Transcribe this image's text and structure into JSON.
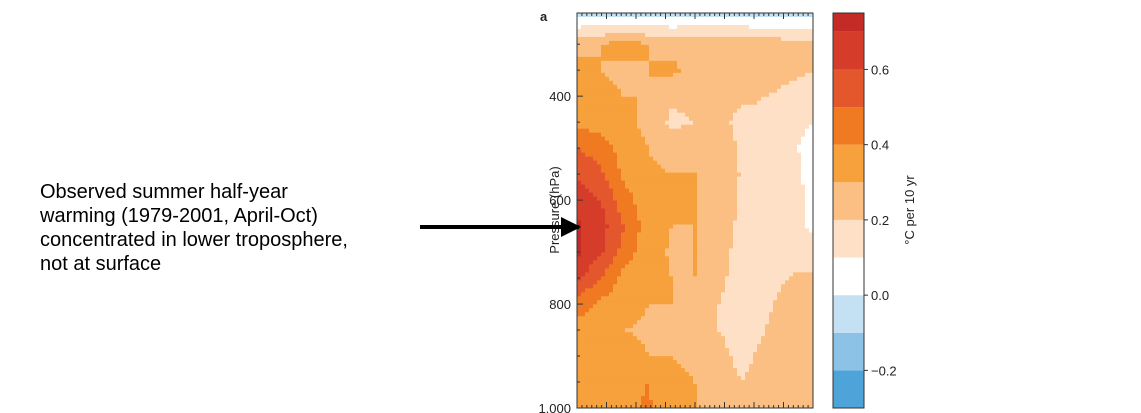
{
  "annotation": {
    "lines": [
      "Observed summer half-year",
      "warming (1979-2001, April-Oct)",
      "concentrated in lower troposphere,",
      "not at surface"
    ]
  },
  "chart_data": {
    "type": "heatmap",
    "panel_label": "a",
    "ylabel": "Pressure (hPa)",
    "yticks": [
      "400",
      "600",
      "800",
      "1,000"
    ],
    "ytick_values": [
      400,
      600,
      800,
      1000
    ],
    "ylim": [
      240,
      1000
    ],
    "y_reversed": true,
    "x_tick_labels": [],
    "grid": false,
    "colorbar": {
      "label": "°C per 10 yr",
      "tick_labels": [
        "0.6",
        "0.4",
        "0.2",
        "0.0",
        "−0.2"
      ],
      "tick_values": [
        0.6,
        0.4,
        0.2,
        0.0,
        -0.2
      ],
      "levels": [
        -0.3,
        -0.2,
        -0.1,
        0.0,
        0.1,
        0.2,
        0.3,
        0.4,
        0.5,
        0.6,
        0.7
      ],
      "colors": [
        "#4ea3d8",
        "#8cc2e6",
        "#c4e0f3",
        "#ffffff",
        "#fde0c5",
        "#fbbf83",
        "#f6a13c",
        "#ef7a22",
        "#e4562c",
        "#d63c2a",
        "#c42a26"
      ]
    },
    "grid_x": [
      0,
      0.1,
      0.2,
      0.3,
      0.4,
      0.5,
      0.6,
      0.7,
      0.8,
      0.9,
      1.0
    ],
    "grid_p": [
      240,
      300,
      350,
      400,
      450,
      500,
      550,
      600,
      650,
      700,
      750,
      800,
      850,
      900,
      950,
      1000
    ],
    "values": [
      [
        -0.05,
        -0.05,
        -0.05,
        -0.05,
        -0.04,
        -0.04,
        -0.04,
        -0.04,
        -0.04,
        -0.04,
        -0.05
      ],
      [
        0.28,
        0.3,
        0.34,
        0.3,
        0.27,
        0.28,
        0.29,
        0.28,
        0.26,
        0.24,
        0.22
      ],
      [
        0.32,
        0.3,
        0.28,
        0.3,
        0.32,
        0.27,
        0.25,
        0.25,
        0.24,
        0.22,
        0.2
      ],
      [
        0.34,
        0.32,
        0.3,
        0.3,
        0.22,
        0.23,
        0.25,
        0.22,
        0.2,
        0.18,
        0.17
      ],
      [
        0.38,
        0.35,
        0.32,
        0.28,
        0.18,
        0.2,
        0.23,
        0.17,
        0.18,
        0.15,
        0.1
      ],
      [
        0.5,
        0.45,
        0.35,
        0.3,
        0.25,
        0.26,
        0.26,
        0.18,
        0.17,
        0.13,
        0.05
      ],
      [
        0.58,
        0.52,
        0.38,
        0.32,
        0.3,
        0.3,
        0.27,
        0.19,
        0.16,
        0.15,
        0.06
      ],
      [
        0.66,
        0.6,
        0.44,
        0.34,
        0.31,
        0.3,
        0.27,
        0.18,
        0.17,
        0.16,
        0.06
      ],
      [
        0.72,
        0.64,
        0.5,
        0.35,
        0.3,
        0.3,
        0.26,
        0.17,
        0.18,
        0.17,
        0.07
      ],
      [
        0.72,
        0.62,
        0.46,
        0.34,
        0.29,
        0.3,
        0.24,
        0.16,
        0.18,
        0.18,
        0.15
      ],
      [
        0.62,
        0.5,
        0.36,
        0.32,
        0.3,
        0.3,
        0.22,
        0.16,
        0.18,
        0.2,
        0.22
      ],
      [
        0.45,
        0.38,
        0.33,
        0.3,
        0.3,
        0.29,
        0.2,
        0.16,
        0.19,
        0.22,
        0.24
      ],
      [
        0.36,
        0.34,
        0.3,
        0.29,
        0.3,
        0.28,
        0.2,
        0.17,
        0.2,
        0.23,
        0.25
      ],
      [
        0.33,
        0.32,
        0.33,
        0.3,
        0.3,
        0.29,
        0.22,
        0.18,
        0.22,
        0.24,
        0.26
      ],
      [
        0.31,
        0.32,
        0.36,
        0.4,
        0.31,
        0.3,
        0.24,
        0.2,
        0.24,
        0.25,
        0.27
      ],
      [
        0.35,
        0.33,
        0.35,
        0.42,
        0.31,
        0.3,
        0.26,
        0.23,
        0.26,
        0.26,
        0.27
      ]
    ]
  }
}
